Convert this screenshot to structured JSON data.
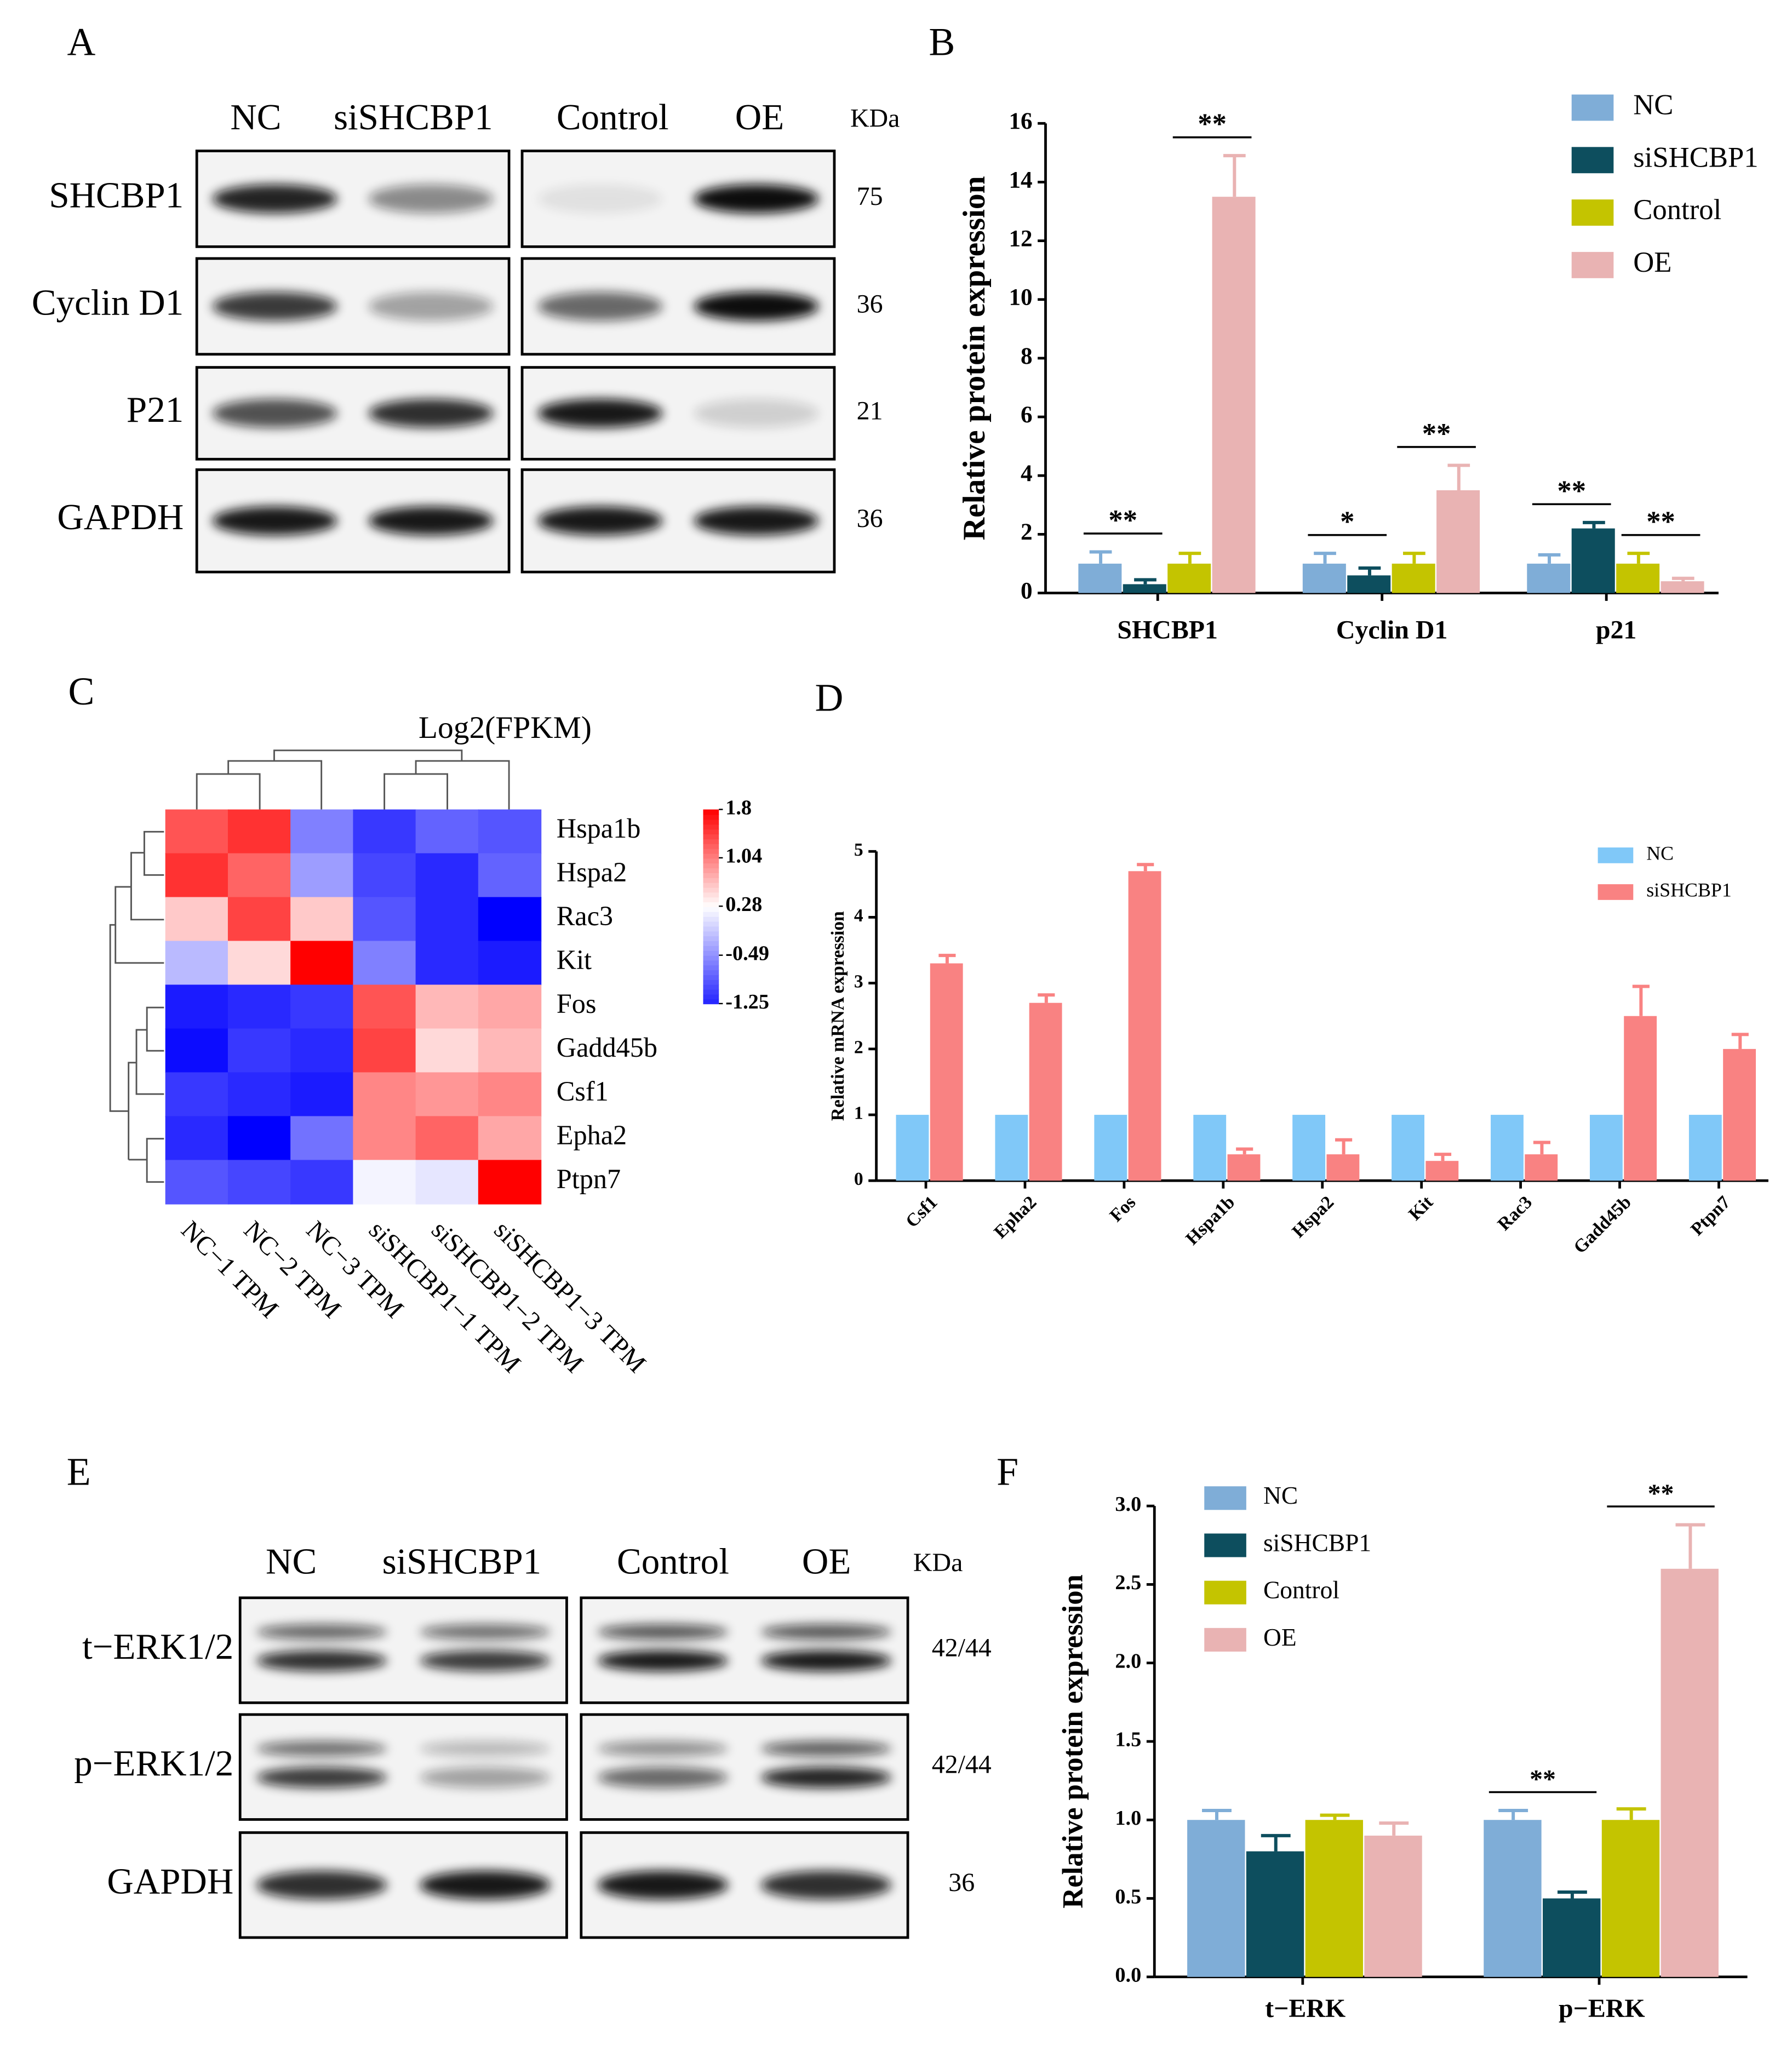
{
  "blots": [
    {
      "panel": "A",
      "lanes": [
        "NC",
        "siSHCBP1",
        "Control",
        "OE"
      ],
      "kda_header": "KDa",
      "rows": [
        {
          "name": "SHCBP1",
          "kda": "75"
        },
        {
          "name": "Cyclin D1",
          "kda": "36"
        },
        {
          "name": "P21",
          "kda": "21"
        },
        {
          "name": "GAPDH",
          "kda": "36"
        }
      ]
    },
    {
      "panel": "E",
      "lanes": [
        "NC",
        "siSHCBP1",
        "Control",
        "OE"
      ],
      "kda_header": "KDa",
      "rows": [
        {
          "name": "t−ERK1/2",
          "kda": "42/44"
        },
        {
          "name": "p−ERK1/2",
          "kda": "42/44"
        },
        {
          "name": "GAPDH",
          "kda": "36"
        }
      ]
    }
  ],
  "chart_data": [
    {
      "type": "bar",
      "panel": "B",
      "ylabel": "Relative protein expression",
      "categories": [
        "SHCBP1",
        "Cyclin D1",
        "p21"
      ],
      "series": [
        {
          "name": "NC",
          "color": "#7fadd7",
          "values": [
            1,
            1,
            1
          ],
          "errors": [
            0.4,
            0.35,
            0.3
          ]
        },
        {
          "name": "siSHCBP1",
          "color": "#0d4e5e",
          "values": [
            0.3,
            0.6,
            2.2
          ],
          "errors": [
            0.15,
            0.25,
            0.2
          ],
          "significance": [
            "**",
            "*",
            "**"
          ]
        },
        {
          "name": "Control",
          "color": "#c4c400",
          "values": [
            1,
            1,
            1
          ],
          "errors": [
            0.35,
            0.35,
            0.35
          ]
        },
        {
          "name": "OE",
          "color": "#e9b3b3",
          "values": [
            13.5,
            3.5,
            0.4
          ],
          "errors": [
            1.4,
            0.85,
            0.1
          ],
          "significance": [
            "**",
            "**",
            "**"
          ]
        }
      ],
      "ylim": [
        0,
        16
      ],
      "yticks": [
        0,
        2,
        4,
        6,
        8,
        10,
        12,
        14,
        16
      ],
      "legend": "top-right"
    },
    {
      "type": "heatmap",
      "panel": "C",
      "title": "Log2(FPKM)",
      "rows": [
        "Hspa1b",
        "Hspa2",
        "Rac3",
        "Kit",
        "Fos",
        "Gadd45b",
        "Csf1",
        "Epha2",
        "Ptpn7"
      ],
      "columns": [
        "NC−1 TPM",
        "NC−2 TPM",
        "NC−3 TPM",
        "siSHCBP1−1 TPM",
        "siSHCBP1−2 TPM",
        "siSHCBP1−3 TPM"
      ],
      "values": [
        [
          1.3,
          1.5,
          -0.6,
          -1.1,
          -0.8,
          -0.9
        ],
        [
          1.5,
          1.2,
          -0.4,
          -1.0,
          -1.2,
          -0.8
        ],
        [
          0.6,
          1.4,
          0.6,
          -0.9,
          -1.2,
          -1.5
        ],
        [
          -0.2,
          0.5,
          1.8,
          -0.6,
          -1.2,
          -1.3
        ],
        [
          -1.3,
          -1.2,
          -1.1,
          1.3,
          0.7,
          0.8
        ],
        [
          -1.4,
          -1.1,
          -1.2,
          1.4,
          0.5,
          0.7
        ],
        [
          -1.1,
          -1.2,
          -1.3,
          1.0,
          0.9,
          1.0
        ],
        [
          -1.2,
          -1.5,
          -0.7,
          1.0,
          1.2,
          0.8
        ],
        [
          -0.9,
          -1.0,
          -1.1,
          0.2,
          0.1,
          1.8
        ]
      ],
      "zlim": [
        -1.25,
        1.8
      ],
      "zticks": [
        1.8,
        1.04,
        0.28,
        -0.49,
        -1.25
      ],
      "colors": [
        "#2222ff",
        "#ffffff",
        "#ff0000"
      ]
    },
    {
      "type": "bar",
      "panel": "D",
      "ylabel": "Relative mRNA expression",
      "categories": [
        "Csf1",
        "Epha2",
        "Fos",
        "Hspa1b",
        "Hspa2",
        "Kit",
        "Rac3",
        "Gadd45b",
        "Ptpn7"
      ],
      "series": [
        {
          "name": "NC",
          "color": "#80c8f8",
          "values": [
            1,
            1,
            1,
            1,
            1,
            1,
            1,
            1,
            1
          ]
        },
        {
          "name": "siSHCBP1",
          "color": "#f98282",
          "values": [
            3.3,
            2.7,
            4.7,
            0.4,
            0.4,
            0.3,
            0.4,
            2.5,
            2.0
          ],
          "errors": [
            0.12,
            0.12,
            0.1,
            0.08,
            0.22,
            0.1,
            0.18,
            0.45,
            0.22
          ]
        }
      ],
      "ylim": [
        0,
        5
      ],
      "yticks": [
        0,
        1,
        2,
        3,
        4,
        5
      ],
      "legend": "top-right"
    },
    {
      "type": "bar",
      "panel": "F",
      "ylabel": "Relative protein expression",
      "categories": [
        "t−ERK",
        "p−ERK"
      ],
      "series": [
        {
          "name": "NC",
          "color": "#7fadd7",
          "values": [
            1,
            1
          ],
          "errors": [
            0.06,
            0.06
          ]
        },
        {
          "name": "siSHCBP1",
          "color": "#0d4e5e",
          "values": [
            0.8,
            0.5
          ],
          "errors": [
            0.1,
            0.04
          ],
          "significance": [
            null,
            "**"
          ]
        },
        {
          "name": "Control",
          "color": "#c4c400",
          "values": [
            1,
            1
          ],
          "errors": [
            0.03,
            0.07
          ]
        },
        {
          "name": "OE",
          "color": "#e9b3b3",
          "values": [
            0.9,
            2.6
          ],
          "errors": [
            0.08,
            0.28
          ],
          "significance": [
            null,
            "**"
          ]
        }
      ],
      "ylim": [
        0,
        3
      ],
      "yticks": [
        {
          "value": 0,
          "label": "0.0"
        },
        {
          "value": 0.5,
          "label": "0.5"
        },
        {
          "value": 1,
          "label": "1.0"
        },
        {
          "value": 1.5,
          "label": "1.5"
        },
        {
          "value": 2,
          "label": "2.0"
        },
        {
          "value": 2.5,
          "label": "2.5"
        },
        {
          "value": 3,
          "label": "3.0"
        }
      ],
      "legend": "top-left"
    }
  ]
}
